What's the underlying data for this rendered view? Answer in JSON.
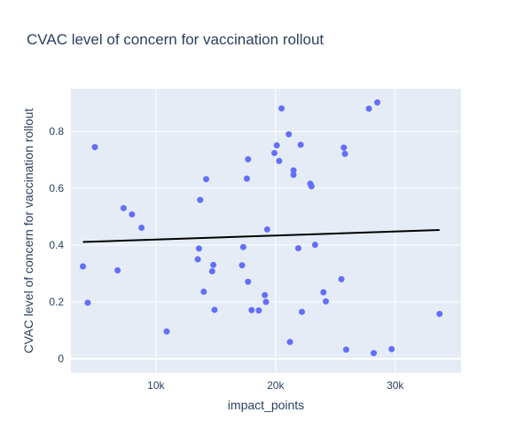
{
  "chart_data": {
    "type": "scatter",
    "title": "CVAC level of concern for vaccination rollout",
    "xlabel": "impact_points",
    "ylabel": "CVAC level of concern for vaccination rollout",
    "xlim": [
      2900,
      35500
    ],
    "ylim": [
      -0.05,
      0.95
    ],
    "x_ticks": [
      {
        "value": 10000,
        "label": "10k"
      },
      {
        "value": 20000,
        "label": "20k"
      },
      {
        "value": 30000,
        "label": "30k"
      }
    ],
    "y_ticks": [
      {
        "value": 0,
        "label": "0"
      },
      {
        "value": 0.2,
        "label": "0.2"
      },
      {
        "value": 0.4,
        "label": "0.4"
      },
      {
        "value": 0.6,
        "label": "0.6"
      },
      {
        "value": 0.8,
        "label": "0.8"
      }
    ],
    "grid": true,
    "colors": {
      "background": "#e5ecf6",
      "grid": "#ffffff",
      "marker": "#636efa",
      "trendline": "#000000"
    },
    "points": [
      {
        "x": 3900,
        "y": 0.325
      },
      {
        "x": 4300,
        "y": 0.197
      },
      {
        "x": 4900,
        "y": 0.745
      },
      {
        "x": 6800,
        "y": 0.311
      },
      {
        "x": 7300,
        "y": 0.53
      },
      {
        "x": 8000,
        "y": 0.508
      },
      {
        "x": 8800,
        "y": 0.461
      },
      {
        "x": 10900,
        "y": 0.096
      },
      {
        "x": 13500,
        "y": 0.35
      },
      {
        "x": 13600,
        "y": 0.388
      },
      {
        "x": 13700,
        "y": 0.559
      },
      {
        "x": 14000,
        "y": 0.236
      },
      {
        "x": 14200,
        "y": 0.632
      },
      {
        "x": 14700,
        "y": 0.308
      },
      {
        "x": 14800,
        "y": 0.33
      },
      {
        "x": 14900,
        "y": 0.172
      },
      {
        "x": 17200,
        "y": 0.329
      },
      {
        "x": 17300,
        "y": 0.393
      },
      {
        "x": 17600,
        "y": 0.634
      },
      {
        "x": 17700,
        "y": 0.702
      },
      {
        "x": 17700,
        "y": 0.271
      },
      {
        "x": 18000,
        "y": 0.171
      },
      {
        "x": 18600,
        "y": 0.17
      },
      {
        "x": 19100,
        "y": 0.224
      },
      {
        "x": 19200,
        "y": 0.2
      },
      {
        "x": 19300,
        "y": 0.455
      },
      {
        "x": 19900,
        "y": 0.724
      },
      {
        "x": 20100,
        "y": 0.751
      },
      {
        "x": 20300,
        "y": 0.696
      },
      {
        "x": 20500,
        "y": 0.881
      },
      {
        "x": 21100,
        "y": 0.79
      },
      {
        "x": 21200,
        "y": 0.059
      },
      {
        "x": 21500,
        "y": 0.663
      },
      {
        "x": 21500,
        "y": 0.647
      },
      {
        "x": 21900,
        "y": 0.389
      },
      {
        "x": 22100,
        "y": 0.753
      },
      {
        "x": 22200,
        "y": 0.165
      },
      {
        "x": 22900,
        "y": 0.616
      },
      {
        "x": 23000,
        "y": 0.607
      },
      {
        "x": 23300,
        "y": 0.401
      },
      {
        "x": 24000,
        "y": 0.234
      },
      {
        "x": 24200,
        "y": 0.202
      },
      {
        "x": 25500,
        "y": 0.28
      },
      {
        "x": 25700,
        "y": 0.743
      },
      {
        "x": 25800,
        "y": 0.721
      },
      {
        "x": 25900,
        "y": 0.032
      },
      {
        "x": 27800,
        "y": 0.88
      },
      {
        "x": 28200,
        "y": 0.02
      },
      {
        "x": 28500,
        "y": 0.902
      },
      {
        "x": 29700,
        "y": 0.034
      },
      {
        "x": 33700,
        "y": 0.158
      }
    ],
    "trendline": {
      "x": [
        3900,
        33700
      ],
      "y": [
        0.411,
        0.453
      ]
    }
  }
}
